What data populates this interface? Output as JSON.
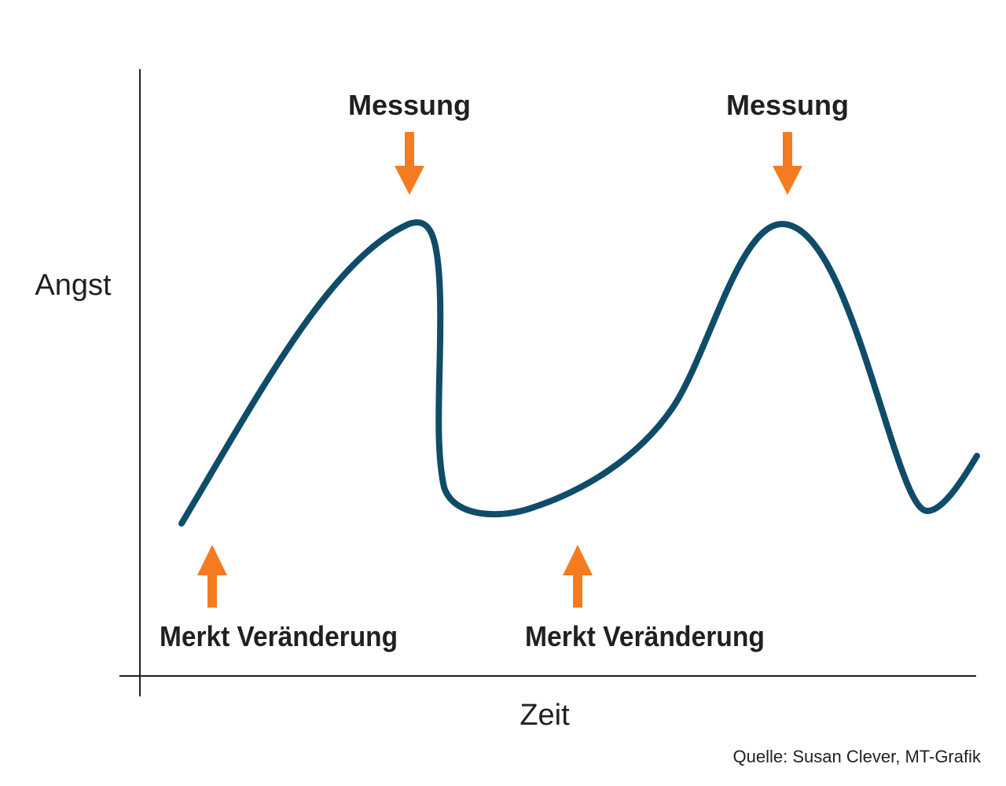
{
  "diagram": {
    "y_axis_label": "Angst",
    "x_axis_label": "Zeit",
    "measurement_label_1": "Messung",
    "measurement_label_2": "Messung",
    "change_label_1": "Merkt Veränderung",
    "change_label_2": "Merkt Veränderung",
    "source": "Quelle: Susan Clever, MT-Grafik"
  },
  "colors": {
    "curve": "#0f4c68",
    "arrow": "#f47b20",
    "axis": "#231f20",
    "text": "#231f20"
  }
}
